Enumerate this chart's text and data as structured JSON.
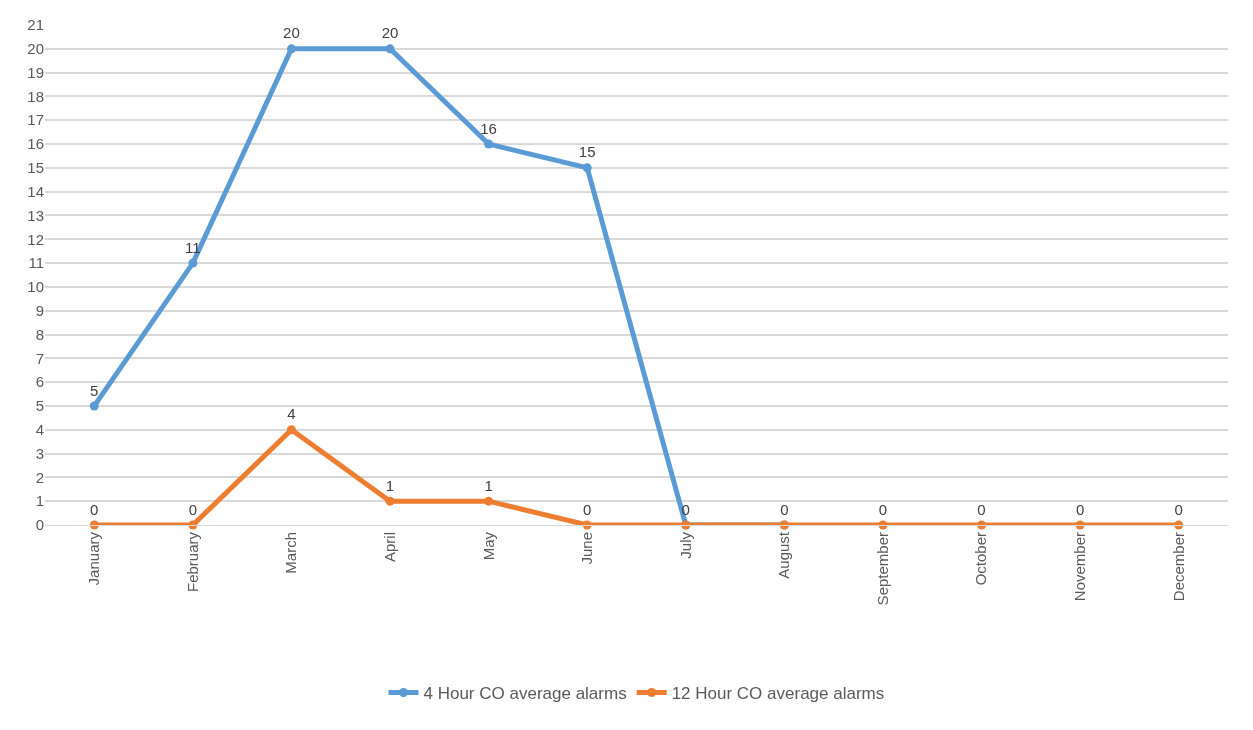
{
  "chart_data": {
    "type": "line",
    "categories": [
      "January",
      "February",
      "March",
      "April",
      "May",
      "June",
      "July",
      "August",
      "September",
      "October",
      "November",
      "December"
    ],
    "series": [
      {
        "name": "4 Hour CO average alarms",
        "color": "#5b9bd5",
        "values": [
          5,
          11,
          20,
          20,
          16,
          15,
          0,
          0,
          null,
          null,
          null,
          null
        ],
        "value_labels": [
          "5",
          "11",
          "20",
          "20",
          "16",
          "15",
          null,
          null,
          null,
          null,
          null,
          null
        ]
      },
      {
        "name": "12 Hour CO average alarms",
        "color": "#ed7d31",
        "values": [
          0,
          0,
          4,
          1,
          1,
          0,
          0,
          0,
          0,
          0,
          0,
          0
        ]
      }
    ],
    "ylim": [
      0,
      21
    ],
    "yticks": [
      0,
      1,
      2,
      3,
      4,
      5,
      6,
      7,
      8,
      9,
      10,
      11,
      12,
      13,
      14,
      15,
      16,
      17,
      18,
      19,
      20,
      21
    ],
    "grid": "y",
    "legend": "bottom",
    "marker": "circle",
    "line_style": "solid",
    "data_labels": true
  }
}
